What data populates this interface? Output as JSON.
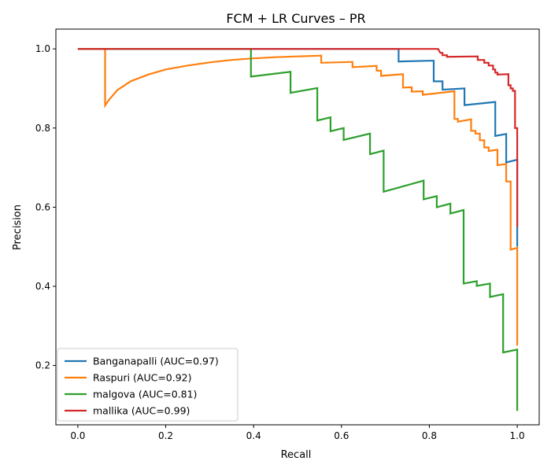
{
  "chart_data": {
    "type": "line",
    "title": "FCM + LR Curves – PR",
    "xlabel": "Recall",
    "ylabel": "Precision",
    "xlim": [
      -0.05,
      1.05
    ],
    "ylim": [
      0.05,
      1.05
    ],
    "xticks": [
      0.0,
      0.2,
      0.4,
      0.6,
      0.8,
      1.0
    ],
    "xtick_labels": [
      "0.0",
      "0.2",
      "0.4",
      "0.6",
      "0.8",
      "1.0"
    ],
    "yticks": [
      0.2,
      0.4,
      0.6,
      0.8,
      1.0
    ],
    "ytick_labels": [
      "0.2",
      "0.4",
      "0.6",
      "0.8",
      "1.0"
    ],
    "grid": false,
    "legend_position": "lower-left",
    "series": [
      {
        "name": "Banganapalli (AUC=0.97)",
        "color": "#1f77b4",
        "points": [
          [
            0,
            1.0
          ],
          [
            0.73,
            1.0
          ],
          [
            0.73,
            0.968
          ],
          [
            0.8,
            0.97
          ],
          [
            0.81,
            0.97
          ],
          [
            0.81,
            0.918
          ],
          [
            0.83,
            0.918
          ],
          [
            0.83,
            0.897
          ],
          [
            0.88,
            0.9
          ],
          [
            0.88,
            0.858
          ],
          [
            0.95,
            0.866
          ],
          [
            0.95,
            0.78
          ],
          [
            0.975,
            0.785
          ],
          [
            0.975,
            0.713
          ],
          [
            1.0,
            0.72
          ],
          [
            1.0,
            0.5
          ]
        ]
      },
      {
        "name": "Raspuri (AUC=0.92)",
        "color": "#ff7f0e",
        "points": [
          [
            0,
            1.0
          ],
          [
            0.062,
            1.0
          ],
          [
            0.062,
            0.857
          ],
          [
            0.07,
            0.87
          ],
          [
            0.09,
            0.896
          ],
          [
            0.12,
            0.918
          ],
          [
            0.16,
            0.935
          ],
          [
            0.2,
            0.948
          ],
          [
            0.25,
            0.958
          ],
          [
            0.3,
            0.966
          ],
          [
            0.35,
            0.972
          ],
          [
            0.4,
            0.976
          ],
          [
            0.45,
            0.979
          ],
          [
            0.5,
            0.981
          ],
          [
            0.554,
            0.983
          ],
          [
            0.554,
            0.965
          ],
          [
            0.625,
            0.967
          ],
          [
            0.625,
            0.954
          ],
          [
            0.68,
            0.957
          ],
          [
            0.68,
            0.945
          ],
          [
            0.69,
            0.945
          ],
          [
            0.69,
            0.932
          ],
          [
            0.74,
            0.936
          ],
          [
            0.74,
            0.902
          ],
          [
            0.76,
            0.903
          ],
          [
            0.76,
            0.892
          ],
          [
            0.785,
            0.893
          ],
          [
            0.785,
            0.884
          ],
          [
            0.857,
            0.893
          ],
          [
            0.857,
            0.823
          ],
          [
            0.865,
            0.823
          ],
          [
            0.865,
            0.816
          ],
          [
            0.895,
            0.822
          ],
          [
            0.895,
            0.793
          ],
          [
            0.905,
            0.793
          ],
          [
            0.905,
            0.786
          ],
          [
            0.915,
            0.786
          ],
          [
            0.915,
            0.769
          ],
          [
            0.925,
            0.769
          ],
          [
            0.925,
            0.751
          ],
          [
            0.935,
            0.751
          ],
          [
            0.935,
            0.742
          ],
          [
            0.955,
            0.745
          ],
          [
            0.955,
            0.706
          ],
          [
            0.975,
            0.709
          ],
          [
            0.975,
            0.665
          ],
          [
            0.985,
            0.665
          ],
          [
            0.985,
            0.493
          ],
          [
            1.0,
            0.497
          ],
          [
            1.0,
            0.25
          ]
        ]
      },
      {
        "name": "malgova (AUC=0.81)",
        "color": "#2ca02c",
        "points": [
          [
            0,
            1.0
          ],
          [
            0.394,
            1.0
          ],
          [
            0.394,
            0.93
          ],
          [
            0.484,
            0.942
          ],
          [
            0.484,
            0.889
          ],
          [
            0.545,
            0.901
          ],
          [
            0.545,
            0.819
          ],
          [
            0.575,
            0.827
          ],
          [
            0.575,
            0.792
          ],
          [
            0.605,
            0.8
          ],
          [
            0.605,
            0.77
          ],
          [
            0.665,
            0.786
          ],
          [
            0.665,
            0.734
          ],
          [
            0.696,
            0.743
          ],
          [
            0.696,
            0.639
          ],
          [
            0.787,
            0.667
          ],
          [
            0.787,
            0.62
          ],
          [
            0.817,
            0.628
          ],
          [
            0.817,
            0.6
          ],
          [
            0.848,
            0.609
          ],
          [
            0.848,
            0.584
          ],
          [
            0.878,
            0.593
          ],
          [
            0.878,
            0.407
          ],
          [
            0.908,
            0.413
          ],
          [
            0.908,
            0.401
          ],
          [
            0.938,
            0.407
          ],
          [
            0.938,
            0.373
          ],
          [
            0.968,
            0.38
          ],
          [
            0.968,
            0.233
          ],
          [
            1.0,
            0.24
          ],
          [
            1.0,
            0.085
          ]
        ]
      },
      {
        "name": "mallika (AUC=0.99)",
        "color": "#d62728",
        "points": [
          [
            0,
            1.0
          ],
          [
            0.82,
            1.0
          ],
          [
            0.825,
            0.99
          ],
          [
            0.83,
            0.99
          ],
          [
            0.83,
            0.984
          ],
          [
            0.84,
            0.984
          ],
          [
            0.84,
            0.98
          ],
          [
            0.91,
            0.981
          ],
          [
            0.91,
            0.972
          ],
          [
            0.925,
            0.972
          ],
          [
            0.925,
            0.965
          ],
          [
            0.935,
            0.965
          ],
          [
            0.935,
            0.958
          ],
          [
            0.945,
            0.958
          ],
          [
            0.945,
            0.948
          ],
          [
            0.95,
            0.948
          ],
          [
            0.95,
            0.94
          ],
          [
            0.955,
            0.94
          ],
          [
            0.955,
            0.935
          ],
          [
            0.98,
            0.936
          ],
          [
            0.98,
            0.908
          ],
          [
            0.985,
            0.908
          ],
          [
            0.985,
            0.9
          ],
          [
            0.99,
            0.9
          ],
          [
            0.99,
            0.894
          ],
          [
            0.995,
            0.894
          ],
          [
            0.995,
            0.8
          ],
          [
            1.0,
            0.8
          ],
          [
            1.0,
            0.55
          ]
        ]
      }
    ]
  }
}
